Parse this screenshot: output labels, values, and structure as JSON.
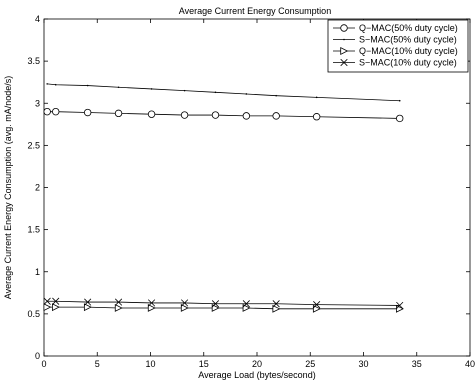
{
  "chart_data": {
    "type": "line",
    "title": "Average Current Energy Consumption",
    "xlabel": "Average Load (bytes/second)",
    "ylabel": "Average Current Energy Consumption (avg. mA/node/s)",
    "xlim": [
      0,
      40
    ],
    "ylim": [
      0,
      4
    ],
    "xticks": [
      0,
      5,
      10,
      15,
      20,
      25,
      30,
      35,
      40
    ],
    "yticks": [
      0,
      0.5,
      1,
      1.5,
      2,
      2.5,
      3,
      3.5,
      4
    ],
    "xtick_labels": [
      "0",
      "5",
      "10",
      "15",
      "20",
      "25",
      "30",
      "35",
      "40"
    ],
    "ytick_labels": [
      "0",
      "0.5",
      "1",
      "1.5",
      "2",
      "2.5",
      "3",
      "3.5",
      "4"
    ],
    "grid": false,
    "legend_position": "top-right",
    "series": [
      {
        "name": "Q−MAC(50% duty cycle)",
        "marker": "circle",
        "x": [
          0.3,
          1.1,
          4.1,
          7.0,
          10.1,
          13.2,
          16.1,
          19.0,
          21.8,
          25.6,
          33.4
        ],
        "y": [
          2.9,
          2.9,
          2.89,
          2.88,
          2.87,
          2.86,
          2.86,
          2.85,
          2.85,
          2.84,
          2.82
        ]
      },
      {
        "name": "S−MAC(50% duty cycle)",
        "marker": "dot",
        "x": [
          0.3,
          1.1,
          4.1,
          7.0,
          10.1,
          13.2,
          16.1,
          19.0,
          21.8,
          25.6,
          33.4
        ],
        "y": [
          3.23,
          3.22,
          3.21,
          3.19,
          3.17,
          3.15,
          3.13,
          3.11,
          3.09,
          3.07,
          3.03
        ]
      },
      {
        "name": "Q−MAC(10% duty cycle)",
        "marker": "triangle-right",
        "x": [
          0.3,
          1.1,
          4.1,
          7.0,
          10.1,
          13.2,
          16.1,
          19.0,
          21.8,
          25.6,
          33.4
        ],
        "y": [
          0.58,
          0.58,
          0.58,
          0.57,
          0.57,
          0.57,
          0.57,
          0.57,
          0.56,
          0.56,
          0.56
        ]
      },
      {
        "name": "S−MAC(10% duty cycle)",
        "marker": "x",
        "x": [
          0.3,
          1.1,
          4.1,
          7.0,
          10.1,
          13.2,
          16.1,
          19.0,
          21.8,
          25.6,
          33.4
        ],
        "y": [
          0.65,
          0.65,
          0.64,
          0.64,
          0.63,
          0.63,
          0.62,
          0.62,
          0.62,
          0.61,
          0.6
        ]
      }
    ]
  }
}
